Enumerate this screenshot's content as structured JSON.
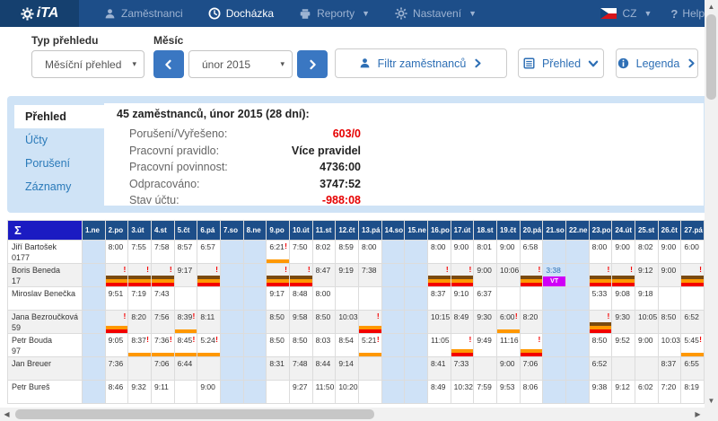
{
  "navbar": {
    "brand": "iTA",
    "items": [
      {
        "label": "Zaměstnanci"
      },
      {
        "label": "Docházka"
      },
      {
        "label": "Reporty"
      },
      {
        "label": "Nastavení"
      }
    ],
    "language": "CZ",
    "help": "Help"
  },
  "filters": {
    "type_label": "Typ přehledu",
    "type_value": "Měsíční přehled",
    "month_label": "Měsíc",
    "month_value": "únor 2015",
    "filter_employees": "Filtr zaměstnanců",
    "overview": "Přehled",
    "legend": "Legenda"
  },
  "summary": {
    "tabs": [
      {
        "label": "Přehled"
      },
      {
        "label": "Účty"
      },
      {
        "label": "Porušení"
      },
      {
        "label": "Záznamy"
      }
    ],
    "heading": "45 zaměstnanců, únor 2015 (28 dní):",
    "rows": [
      {
        "label": "Porušení/Vyřešeno:",
        "value": "603/0",
        "red": true
      },
      {
        "label": "Pracovní pravidlo:",
        "value": "Více pravidel",
        "red": false
      },
      {
        "label": "Pracovní povinnost:",
        "value": "4736:00",
        "red": false
      },
      {
        "label": "Odpracováno:",
        "value": "3747:52",
        "red": false
      },
      {
        "label": "Stav účtu:",
        "value": "-988:08",
        "red": true
      }
    ]
  },
  "table": {
    "sigma": "Σ",
    "warn_symbol": "!",
    "colors": {
      "brown": "#7a4a10",
      "orange": "#ff9800",
      "red": "#f30000",
      "vt": "#cf00f7",
      "weekend": "#cfe2f7",
      "header": "#1d4e89",
      "sigma_bg": "#1b1bc2",
      "warn": "#f50000",
      "negative": "#e60000"
    },
    "days": [
      {
        "label": "1.ne",
        "weekend": true
      },
      {
        "label": "2.po",
        "weekend": false
      },
      {
        "label": "3.út",
        "weekend": false
      },
      {
        "label": "4.st",
        "weekend": false
      },
      {
        "label": "5.čt",
        "weekend": false
      },
      {
        "label": "6.pá",
        "weekend": false
      },
      {
        "label": "7.so",
        "weekend": true
      },
      {
        "label": "8.ne",
        "weekend": true
      },
      {
        "label": "9.po",
        "weekend": false
      },
      {
        "label": "10.út",
        "weekend": false
      },
      {
        "label": "11.st",
        "weekend": false
      },
      {
        "label": "12.čt",
        "weekend": false
      },
      {
        "label": "13.pá",
        "weekend": false
      },
      {
        "label": "14.so",
        "weekend": true
      },
      {
        "label": "15.ne",
        "weekend": true
      },
      {
        "label": "16.po",
        "weekend": false
      },
      {
        "label": "17.út",
        "weekend": false
      },
      {
        "label": "18.st",
        "weekend": false
      },
      {
        "label": "19.čt",
        "weekend": false
      },
      {
        "label": "20.pá",
        "weekend": false
      },
      {
        "label": "21.so",
        "weekend": true
      },
      {
        "label": "22.ne",
        "weekend": true
      },
      {
        "label": "23.po",
        "weekend": false
      },
      {
        "label": "24.út",
        "weekend": false
      },
      {
        "label": "25.st",
        "weekend": false
      },
      {
        "label": "26.čt",
        "weekend": false
      },
      {
        "label": "27.pá",
        "weekend": false
      }
    ],
    "employees": [
      {
        "name": "Jiří Bartošek",
        "id": "0177",
        "cells": [
          {
            "d": 2,
            "t": "8:00"
          },
          {
            "d": 3,
            "t": "7:55"
          },
          {
            "d": 4,
            "t": "7:58"
          },
          {
            "d": 5,
            "t": "8:57"
          },
          {
            "d": 6,
            "t": "6:57"
          },
          {
            "d": 9,
            "t": "6:21",
            "w": true,
            "bars": [
              "orange"
            ]
          },
          {
            "d": 10,
            "t": "7:50"
          },
          {
            "d": 11,
            "t": "8:02"
          },
          {
            "d": 12,
            "t": "8:59"
          },
          {
            "d": 13,
            "t": "8:00"
          },
          {
            "d": 16,
            "t": "8:00"
          },
          {
            "d": 17,
            "t": "9:00"
          },
          {
            "d": 18,
            "t": "8:01"
          },
          {
            "d": 19,
            "t": "9:00"
          },
          {
            "d": 20,
            "t": "6:58"
          },
          {
            "d": 23,
            "t": "8:00"
          },
          {
            "d": 24,
            "t": "9:00"
          },
          {
            "d": 25,
            "t": "8:02"
          },
          {
            "d": 26,
            "t": "9:00"
          },
          {
            "d": 27,
            "t": "6:00"
          }
        ]
      },
      {
        "name": "Boris Beneda",
        "id": "17",
        "cells": [
          {
            "d": 2,
            "w": true,
            "bars": [
              "brown",
              "orange",
              "red"
            ]
          },
          {
            "d": 3,
            "w": true,
            "bars": [
              "brown",
              "orange",
              "red"
            ]
          },
          {
            "d": 4,
            "w": true,
            "bars": [
              "brown",
              "orange",
              "red"
            ]
          },
          {
            "d": 5,
            "t": "9:17"
          },
          {
            "d": 6,
            "w": true,
            "bars": [
              "brown",
              "orange",
              "red"
            ]
          },
          {
            "d": 9,
            "w": true,
            "bars": [
              "brown",
              "orange",
              "red"
            ]
          },
          {
            "d": 10,
            "w": true,
            "bars": [
              "brown",
              "orange",
              "red"
            ]
          },
          {
            "d": 11,
            "t": "8:47"
          },
          {
            "d": 12,
            "t": "9:19"
          },
          {
            "d": 13,
            "t": "7:38"
          },
          {
            "d": 16,
            "w": true,
            "bars": [
              "brown",
              "orange",
              "red"
            ]
          },
          {
            "d": 17,
            "w": true,
            "bars": [
              "brown",
              "orange",
              "red"
            ]
          },
          {
            "d": 18,
            "t": "9:00"
          },
          {
            "d": 19,
            "t": "10:06"
          },
          {
            "d": 20,
            "w": true,
            "bars": [
              "brown",
              "orange",
              "red"
            ]
          },
          {
            "d": 21,
            "t": "3:38",
            "blue": true,
            "bars": [
              "vt"
            ],
            "bar_text": "VT"
          },
          {
            "d": 23,
            "w": true,
            "bars": [
              "brown",
              "orange",
              "red"
            ]
          },
          {
            "d": 24,
            "w": true,
            "bars": [
              "brown",
              "orange",
              "red"
            ]
          },
          {
            "d": 25,
            "t": "9:12"
          },
          {
            "d": 26,
            "t": "9:00"
          },
          {
            "d": 27,
            "w": true,
            "bars": [
              "brown",
              "orange",
              "red"
            ]
          }
        ]
      },
      {
        "name": "Miroslav Benečka",
        "id": "",
        "cells": [
          {
            "d": 2,
            "t": "9:51"
          },
          {
            "d": 3,
            "t": "7:19"
          },
          {
            "d": 4,
            "t": "7:43"
          },
          {
            "d": 9,
            "t": "9:17"
          },
          {
            "d": 10,
            "t": "8:48"
          },
          {
            "d": 11,
            "t": "8:00"
          },
          {
            "d": 16,
            "t": "8:37"
          },
          {
            "d": 17,
            "t": "9:10"
          },
          {
            "d": 18,
            "t": "6:37"
          },
          {
            "d": 23,
            "t": "5:33"
          },
          {
            "d": 24,
            "t": "9:08"
          },
          {
            "d": 25,
            "t": "9:18"
          }
        ]
      },
      {
        "name": "Jana Bezroučková",
        "id": "59",
        "cells": [
          {
            "d": 2,
            "w": true,
            "bars": [
              "orange",
              "red"
            ]
          },
          {
            "d": 3,
            "t": "8:20"
          },
          {
            "d": 4,
            "t": "7:56"
          },
          {
            "d": 5,
            "t": "8:39",
            "w": true,
            "bars": [
              "orange"
            ]
          },
          {
            "d": 6,
            "t": "8:11"
          },
          {
            "d": 9,
            "t": "8:50"
          },
          {
            "d": 10,
            "t": "9:58"
          },
          {
            "d": 11,
            "t": "8:50"
          },
          {
            "d": 12,
            "t": "10:03"
          },
          {
            "d": 13,
            "w": true,
            "bars": [
              "orange",
              "red"
            ]
          },
          {
            "d": 16,
            "t": "10:15"
          },
          {
            "d": 17,
            "t": "8:49"
          },
          {
            "d": 18,
            "t": "9:30"
          },
          {
            "d": 19,
            "t": "6:00",
            "w": true,
            "bars": [
              "orange"
            ]
          },
          {
            "d": 20,
            "t": "8:20"
          },
          {
            "d": 23,
            "w": true,
            "bars": [
              "brown",
              "orange",
              "red"
            ]
          },
          {
            "d": 24,
            "t": "9:30"
          },
          {
            "d": 25,
            "t": "10:05"
          },
          {
            "d": 26,
            "t": "8:50"
          },
          {
            "d": 27,
            "t": "6:52"
          }
        ]
      },
      {
        "name": "Petr Bouda",
        "id": "97",
        "cells": [
          {
            "d": 2,
            "t": "9:05"
          },
          {
            "d": 3,
            "t": "8:37",
            "w": true,
            "bars": [
              "orange"
            ]
          },
          {
            "d": 4,
            "t": "7:36",
            "w": true,
            "bars": [
              "orange"
            ]
          },
          {
            "d": 5,
            "t": "8:45",
            "w": true,
            "bars": [
              "orange"
            ]
          },
          {
            "d": 6,
            "t": "5:24",
            "w": true,
            "bars": [
              "orange"
            ]
          },
          {
            "d": 9,
            "t": "8:50"
          },
          {
            "d": 10,
            "t": "8:50"
          },
          {
            "d": 11,
            "t": "8:03"
          },
          {
            "d": 12,
            "t": "8:54"
          },
          {
            "d": 13,
            "t": "5:21",
            "w": true,
            "bars": [
              "orange"
            ]
          },
          {
            "d": 16,
            "t": "11:05"
          },
          {
            "d": 17,
            "w": true,
            "bars": [
              "orange",
              "red"
            ]
          },
          {
            "d": 18,
            "t": "9:49"
          },
          {
            "d": 19,
            "t": "11:16"
          },
          {
            "d": 20,
            "w": true,
            "bars": [
              "orange",
              "red"
            ]
          },
          {
            "d": 23,
            "t": "8:50"
          },
          {
            "d": 24,
            "t": "9:52"
          },
          {
            "d": 25,
            "t": "9:00"
          },
          {
            "d": 26,
            "t": "10:03"
          },
          {
            "d": 27,
            "t": "5:45",
            "w": true,
            "bars": [
              "orange"
            ]
          }
        ]
      },
      {
        "name": "Jan Breuer",
        "id": "",
        "cells": [
          {
            "d": 2,
            "t": "7:36"
          },
          {
            "d": 4,
            "t": "7:06"
          },
          {
            "d": 5,
            "t": "6:44"
          },
          {
            "d": 9,
            "t": "8:31"
          },
          {
            "d": 10,
            "t": "7:48"
          },
          {
            "d": 11,
            "t": "8:44"
          },
          {
            "d": 12,
            "t": "9:14"
          },
          {
            "d": 16,
            "t": "8:41"
          },
          {
            "d": 17,
            "t": "7:33"
          },
          {
            "d": 19,
            "t": "9:00"
          },
          {
            "d": 20,
            "t": "7:06"
          },
          {
            "d": 23,
            "t": "6:52"
          },
          {
            "d": 26,
            "t": "8:37"
          },
          {
            "d": 27,
            "t": "6:55"
          }
        ]
      },
      {
        "name": "Petr Bureš",
        "id": "",
        "cells": [
          {
            "d": 2,
            "t": "8:46"
          },
          {
            "d": 3,
            "t": "9:32"
          },
          {
            "d": 4,
            "t": "9:11"
          },
          {
            "d": 6,
            "t": "9:00"
          },
          {
            "d": 10,
            "t": "9:27"
          },
          {
            "d": 11,
            "t": "11:50"
          },
          {
            "d": 12,
            "t": "10:20"
          },
          {
            "d": 16,
            "t": "8:49"
          },
          {
            "d": 17,
            "t": "10:32"
          },
          {
            "d": 18,
            "t": "7:59"
          },
          {
            "d": 19,
            "t": "9:53"
          },
          {
            "d": 20,
            "t": "8:06"
          },
          {
            "d": 23,
            "t": "9:38"
          },
          {
            "d": 24,
            "t": "9:12"
          },
          {
            "d": 25,
            "t": "6:02"
          },
          {
            "d": 26,
            "t": "7:20"
          },
          {
            "d": 27,
            "t": "8:19"
          }
        ]
      }
    ]
  }
}
